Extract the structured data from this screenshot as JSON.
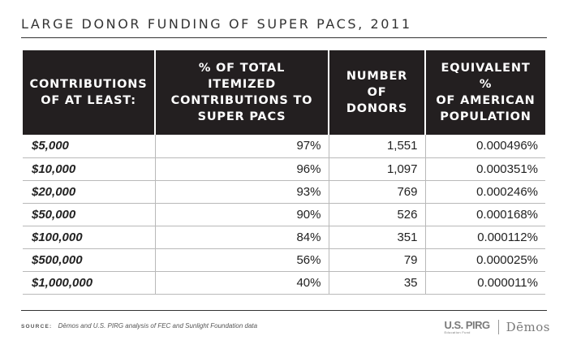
{
  "title": "LARGE DONOR FUNDING OF SUPER PACS, 2011",
  "table": {
    "headers": [
      [
        "CONTRIBUTIONS",
        "OF AT LEAST:"
      ],
      [
        "% OF TOTAL ITEMIZED",
        "CONTRIBUTIONS TO",
        "SUPER PACS"
      ],
      [
        "NUMBER OF",
        "DONORS"
      ],
      [
        "EQUIVALENT %",
        "OF AMERICAN",
        "POPULATION"
      ]
    ],
    "rows": [
      [
        "$5,000",
        "97%",
        "1,551",
        "0.000496%"
      ],
      [
        "$10,000",
        "96%",
        "1,097",
        "0.000351%"
      ],
      [
        "$20,000",
        "93%",
        "769",
        "0.000246%"
      ],
      [
        "$50,000",
        "90%",
        "526",
        "0.000168%"
      ],
      [
        "$100,000",
        "84%",
        "351",
        "0.000112%"
      ],
      [
        "$500,000",
        "56%",
        "79",
        "0.000025%"
      ],
      [
        "$1,000,000",
        "40%",
        "35",
        "0.000011%"
      ]
    ]
  },
  "source": {
    "label": "SOURCE:",
    "text": "Dēmos and U.S. PIRG analysis of FEC and Sunlight Foundation data"
  },
  "logos": {
    "pirg_main": "U.S. PIRG",
    "pirg_sub": "Education Fund",
    "demos": "Dēmos"
  }
}
